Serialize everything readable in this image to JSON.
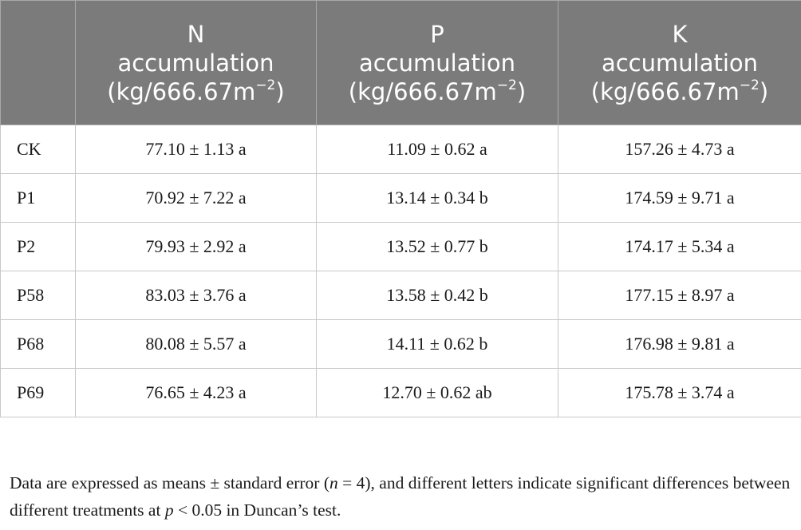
{
  "table": {
    "headers": [
      {
        "id": "row",
        "line1": "",
        "line2": "",
        "unit": "",
        "sup": ""
      },
      {
        "id": "n",
        "line1": "N",
        "line2": "accumulation",
        "unit": "(kg/666.67m",
        "sup": "−2",
        "close": ")"
      },
      {
        "id": "p",
        "line1": "P",
        "line2": "accumulation",
        "unit": "(kg/666.67m",
        "sup": "−2",
        "close": ")"
      },
      {
        "id": "k",
        "line1": "K",
        "line2": "accumulation",
        "unit": "(kg/666.67m",
        "sup": "−2",
        "close": ")"
      }
    ],
    "rows": [
      {
        "label": "CK",
        "n": "77.10 ± 1.13 a",
        "p": "11.09 ± 0.62 a",
        "k": "157.26 ± 4.73 a"
      },
      {
        "label": "P1",
        "n": "70.92 ± 7.22 a",
        "p": "13.14 ± 0.34 b",
        "k": "174.59 ± 9.71 a"
      },
      {
        "label": "P2",
        "n": "79.93 ± 2.92 a",
        "p": "13.52 ± 0.77 b",
        "k": "174.17 ± 5.34 a"
      },
      {
        "label": "P58",
        "n": "83.03 ± 3.76 a",
        "p": "13.58 ± 0.42 b",
        "k": "177.15 ± 8.97 a"
      },
      {
        "label": "P68",
        "n": "80.08 ± 5.57 a",
        "p": "14.11 ± 0.62 b",
        "k": "176.98 ± 9.81 a"
      },
      {
        "label": "P69",
        "n": "76.65 ± 4.23 a",
        "p": "12.70 ± 0.62 ab",
        "k": "175.78 ± 3.74 a"
      }
    ]
  },
  "note": {
    "part1": "Data are expressed as means ± standard error (",
    "n_var": "n",
    "part2": " = 4), and different letters indicate significant differences between different treatments at ",
    "p_var": "p",
    "part3": " < 0.05 in Duncan’s test."
  }
}
